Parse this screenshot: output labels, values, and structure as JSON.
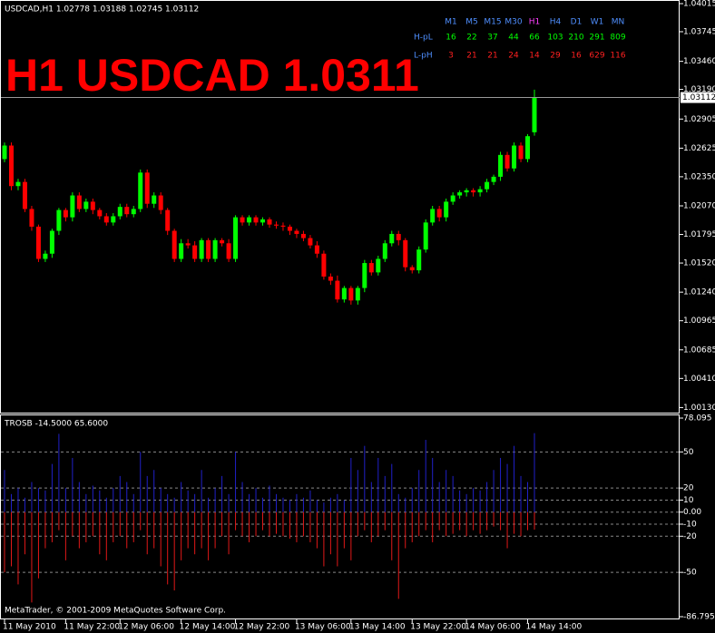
{
  "chart_data": [
    {
      "type": "candlestick",
      "title": "USDCAD,H1  1.02778 1.03188 1.02745 1.03112",
      "annotation": "H1 USDCAD 1.0311",
      "categories": [
        "11 May 2010",
        null,
        null,
        null,
        null,
        null,
        null,
        null,
        null,
        "11 May 22:00",
        null,
        null,
        null,
        null,
        null,
        null,
        null,
        "12 May 06:00",
        null,
        null,
        null,
        null,
        null,
        null,
        null,
        null,
        "12 May 14:00",
        null,
        null,
        null,
        null,
        null,
        null,
        null,
        "12 May 22:00",
        null,
        null,
        null,
        null,
        null,
        null,
        null,
        null,
        "13 May 06:00",
        null,
        null,
        null,
        null,
        null,
        null,
        null,
        "13 May 14:00",
        null,
        null,
        null,
        null,
        null,
        null,
        null,
        null,
        "13 May 22:00",
        null,
        null,
        null,
        null,
        null,
        null,
        null,
        "14 May 06:00",
        null,
        null,
        null,
        null,
        null,
        null,
        null,
        null,
        "14 May 14:00",
        null
      ],
      "open": [
        1.0252,
        1.0265,
        1.0226,
        1.023,
        1.0204,
        1.0187,
        1.0156,
        1.0161,
        1.0183,
        1.0203,
        1.0196,
        1.0217,
        1.0204,
        1.0211,
        1.0203,
        1.0197,
        1.0191,
        1.0197,
        1.0206,
        1.0199,
        1.0204,
        1.0239,
        1.0209,
        1.0217,
        1.0203,
        1.0183,
        1.0156,
        1.0171,
        1.0169,
        1.0156,
        1.0174,
        1.0156,
        1.0174,
        1.0171,
        1.0156,
        1.0196,
        1.0191,
        1.0196,
        1.0191,
        1.0194,
        1.0189,
        1.0188,
        1.0187,
        1.0183,
        1.018,
        1.0176,
        1.0169,
        1.0161,
        1.0139,
        1.0135,
        1.0117,
        1.0128,
        1.0116,
        1.0128,
        1.0152,
        1.0143,
        1.0156,
        1.0171,
        1.018,
        1.0174,
        1.0148,
        1.0145,
        1.0165,
        1.0191,
        1.0204,
        1.0196,
        1.0211,
        1.0217,
        1.022,
        1.0222,
        1.022,
        1.0223,
        1.023,
        1.0235,
        1.0256,
        1.0243,
        1.0265,
        1.0252,
        1.02778
      ],
      "high": [
        1.0268,
        1.0268,
        1.0233,
        1.0233,
        1.0207,
        1.0189,
        1.0164,
        1.0185,
        1.0205,
        1.0205,
        1.022,
        1.022,
        1.0214,
        1.0214,
        1.0205,
        1.02,
        1.02,
        1.0209,
        1.0209,
        1.0207,
        1.0242,
        1.0242,
        1.022,
        1.022,
        1.0205,
        1.0185,
        1.0175,
        1.0175,
        1.0173,
        1.0176,
        1.0176,
        1.0176,
        1.0176,
        1.0175,
        1.0198,
        1.0198,
        1.0198,
        1.0198,
        1.0196,
        1.0196,
        1.0192,
        1.0191,
        1.0189,
        1.0185,
        1.0183,
        1.0179,
        1.0173,
        1.0164,
        1.0142,
        1.014,
        1.013,
        1.013,
        1.013,
        1.0155,
        1.0155,
        1.0159,
        1.0174,
        1.0183,
        1.0183,
        1.0176,
        1.015,
        1.0168,
        1.0194,
        1.0207,
        1.0207,
        1.0214,
        1.022,
        1.0222,
        1.0224,
        1.0224,
        1.0226,
        1.0233,
        1.0237,
        1.0259,
        1.0259,
        1.0268,
        1.0268,
        1.0276,
        1.03188
      ],
      "low": [
        1.0249,
        1.0222,
        1.0222,
        1.0201,
        1.0183,
        1.0153,
        1.0153,
        1.0157,
        1.0179,
        1.0192,
        1.0192,
        1.0201,
        1.0201,
        1.0199,
        1.0194,
        1.0188,
        1.0188,
        1.0194,
        1.0196,
        1.0196,
        1.0201,
        1.0205,
        1.0205,
        1.0199,
        1.0179,
        1.0153,
        1.0153,
        1.0166,
        1.0153,
        1.0153,
        1.0153,
        1.0153,
        1.0168,
        1.0153,
        1.0153,
        1.0188,
        1.0188,
        1.0188,
        1.0188,
        1.0186,
        1.0185,
        1.0183,
        1.0179,
        1.0176,
        1.0173,
        1.0166,
        1.0157,
        1.0136,
        1.0131,
        1.0114,
        1.0114,
        1.0112,
        1.0112,
        1.0124,
        1.014,
        1.014,
        1.0153,
        1.0168,
        1.0169,
        1.0144,
        1.0142,
        1.0142,
        1.0162,
        1.0188,
        1.0192,
        1.0192,
        1.0208,
        1.0214,
        1.0216,
        1.0216,
        1.0216,
        1.022,
        1.0227,
        1.0231,
        1.024,
        1.024,
        1.0249,
        1.0249,
        1.02745
      ],
      "close": [
        1.0265,
        1.0226,
        1.023,
        1.0204,
        1.0187,
        1.0156,
        1.0161,
        1.0183,
        1.0203,
        1.0196,
        1.0217,
        1.0204,
        1.0211,
        1.0203,
        1.0197,
        1.0191,
        1.0197,
        1.0206,
        1.0199,
        1.0204,
        1.0239,
        1.0209,
        1.0217,
        1.0203,
        1.0183,
        1.0156,
        1.0171,
        1.0169,
        1.0156,
        1.0174,
        1.0156,
        1.0174,
        1.0171,
        1.0156,
        1.0196,
        1.0191,
        1.0196,
        1.0191,
        1.0194,
        1.0189,
        1.0188,
        1.0187,
        1.0183,
        1.018,
        1.0176,
        1.0169,
        1.0161,
        1.0139,
        1.0135,
        1.0117,
        1.0128,
        1.0116,
        1.0128,
        1.0152,
        1.0143,
        1.0156,
        1.0171,
        1.018,
        1.0174,
        1.0148,
        1.0145,
        1.0165,
        1.0191,
        1.0204,
        1.0196,
        1.0211,
        1.0217,
        1.022,
        1.0222,
        1.022,
        1.0223,
        1.023,
        1.0235,
        1.0256,
        1.0243,
        1.0265,
        1.0252,
        1.0274,
        1.03112
      ],
      "up_color": "#00ff00",
      "down_color": "#ff0000",
      "ylim": [
        1.0009,
        1.0405
      ],
      "yticks": [
        1.04015,
        1.03745,
        {
          "value": 1.0346,
          "label": "1.03460"
        },
        {
          "value": 1.0319,
          "label": "1.03190"
        },
        1.02905,
        1.02625,
        {
          "value": 1.0235,
          "label": "1.02350"
        },
        {
          "value": 1.0207,
          "label": "1.02070"
        },
        1.01795,
        {
          "value": 1.0152,
          "label": "1.01520"
        },
        {
          "value": 1.0124,
          "label": "1.01240"
        },
        1.00965,
        1.00685,
        {
          "value": 1.0041,
          "label": "1.00410"
        },
        {
          "value": 1.0013,
          "label": "1.00130"
        }
      ],
      "price_line": true,
      "table": {
        "columns": [
          "M1",
          "M5",
          "M15",
          "M30",
          "H1",
          "H4",
          "D1",
          "W1",
          "MN"
        ],
        "column_colors": [
          "#4f8fff",
          "#4f8fff",
          "#4f8fff",
          "#4f8fff",
          "#ff40ff",
          "#4f8fff",
          "#4f8fff",
          "#4f8fff",
          "#4f8fff"
        ],
        "label_color": "#4f8fff",
        "rows": [
          {
            "label": "H-pL",
            "color": "#00ff00",
            "values": [
              16,
              22,
              37,
              44,
              66,
              103,
              210,
              291,
              809
            ]
          },
          {
            "label": "L-pH",
            "color": "#ff2020",
            "values": [
              3,
              21,
              21,
              24,
              14,
              29,
              16,
              629,
              116
            ]
          }
        ]
      }
    },
    {
      "type": "bar",
      "title": "TROSB -14.5000 65.6000",
      "annotation": "MetaTrader, © 2001-2009 MetaQuotes Software Corp.",
      "series": [
        {
          "color": "#2020c8",
          "values": [
            35,
            15,
            20,
            12,
            25,
            20,
            18,
            40,
            65,
            20,
            45,
            25,
            15,
            22,
            18,
            12,
            20,
            30,
            25,
            15,
            50,
            30,
            35,
            20,
            15,
            12,
            25,
            18,
            15,
            35,
            12,
            20,
            30,
            15,
            50,
            25,
            15,
            20,
            12,
            22,
            15,
            12,
            10,
            15,
            12,
            18,
            10,
            8,
            12,
            15,
            10,
            45,
            35,
            55,
            25,
            45,
            30,
            40,
            15,
            12,
            20,
            35,
            60,
            45,
            25,
            35,
            30,
            18,
            15,
            20,
            18,
            25,
            35,
            45,
            40,
            55,
            30,
            25,
            65.6
          ]
        },
        {
          "color": "#e01818",
          "values": [
            -50,
            -45,
            -60,
            -35,
            -75,
            -55,
            -30,
            -25,
            -15,
            -40,
            -20,
            -30,
            -25,
            -20,
            -35,
            -40,
            -25,
            -20,
            -30,
            -25,
            -15,
            -35,
            -30,
            -45,
            -60,
            -65,
            -40,
            -30,
            -35,
            -30,
            -40,
            -30,
            -20,
            -35,
            -15,
            -20,
            -25,
            -20,
            -15,
            -20,
            -18,
            -20,
            -22,
            -25,
            -20,
            -25,
            -30,
            -45,
            -35,
            -45,
            -30,
            -40,
            -20,
            -15,
            -25,
            -20,
            -15,
            -40,
            -72,
            -30,
            -25,
            -20,
            -15,
            -25,
            -15,
            -20,
            -18,
            -15,
            -20,
            -15,
            -18,
            -15,
            -12,
            -15,
            -30,
            -18,
            -20,
            -15,
            -14.5
          ]
        }
      ],
      "ylim": [
        -86.795,
        78.095
      ],
      "yticks": [
        78.095,
        50,
        20,
        10,
        {
          "value": 0,
          "label": "0.00"
        },
        -10,
        -20,
        -50,
        -86.795
      ],
      "grid": true
    }
  ]
}
